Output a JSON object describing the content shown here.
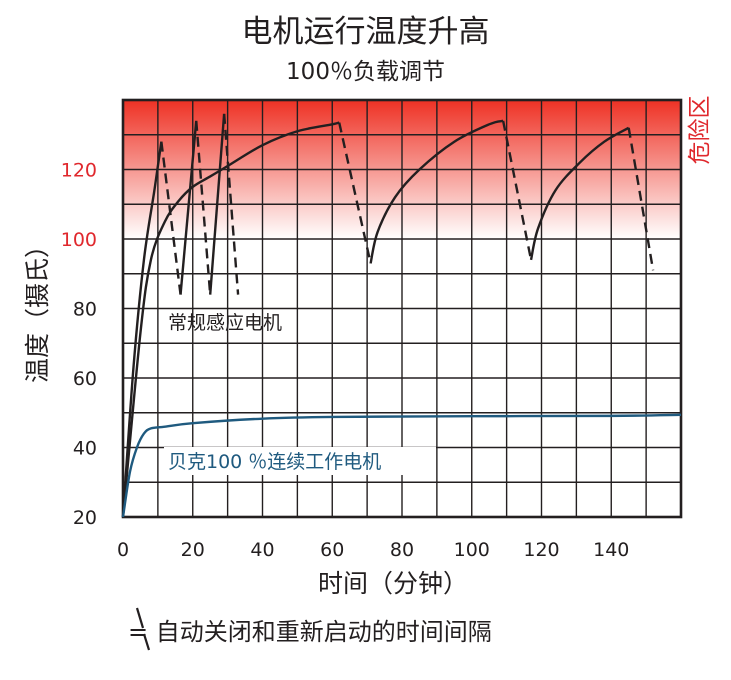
{
  "title": "电机运行温度升高",
  "subtitle": "100％负载调节",
  "danger_label": "危险区",
  "note": "= 自动关闭和重新启动的时间间隔",
  "colors": {
    "danger_top": "#ee3124",
    "danger_bottom": "#ffffff",
    "motor_line": "#231f20",
    "continuous_line": "#1f5a7f",
    "danger_text": "#e0282d",
    "axis_text": "#231f20"
  },
  "chart_data": {
    "type": "line",
    "title": "",
    "xlabel": "时间（分钟）",
    "ylabel": "温度（摄氏）",
    "xlim": [
      0,
      160
    ],
    "ylim": [
      20,
      140
    ],
    "x_ticks": [
      0,
      20,
      40,
      60,
      80,
      100,
      120,
      140
    ],
    "y_ticks": [
      20,
      40,
      60,
      80,
      100,
      120
    ],
    "danger_zone_from": 100,
    "grid": true,
    "series": [
      {
        "name": "常规感应电机",
        "color": "#231f20",
        "segments": [
          {
            "style": "solid",
            "points": [
              [
                0,
                20
              ],
              [
                3,
                63
              ],
              [
                6,
                94
              ],
              [
                9,
                114
              ],
              [
                11,
                128
              ]
            ]
          },
          {
            "style": "dashed",
            "points": [
              [
                11,
                128
              ],
              [
                16.5,
                84
              ]
            ]
          },
          {
            "style": "solid",
            "points": [
              [
                0,
                20
              ],
              [
                5,
                73
              ],
              [
                8,
                94
              ],
              [
                12,
                105
              ],
              [
                16,
                111
              ],
              [
                20,
                115
              ],
              [
                25,
                118
              ],
              [
                30,
                121
              ],
              [
                40,
                127
              ],
              [
                50,
                131
              ],
              [
                60,
                133
              ],
              [
                62,
                133.5
              ]
            ]
          },
          {
            "style": "solid",
            "points": [
              [
                16.5,
                84
              ],
              [
                21,
                134
              ]
            ]
          },
          {
            "style": "dashed",
            "points": [
              [
                21,
                134
              ],
              [
                25,
                84
              ]
            ]
          },
          {
            "style": "solid",
            "points": [
              [
                25,
                84
              ],
              [
                29,
                136
              ]
            ]
          },
          {
            "style": "dashed",
            "points": [
              [
                29,
                136
              ],
              [
                33,
                84
              ]
            ]
          },
          {
            "style": "dashed",
            "points": [
              [
                62,
                133.5
              ],
              [
                71,
                93
              ]
            ]
          },
          {
            "style": "solid",
            "points": [
              [
                71,
                93
              ],
              [
                73,
                102
              ],
              [
                78,
                112
              ],
              [
                85,
                120
              ],
              [
                95,
                128
              ],
              [
                105,
                133
              ],
              [
                109,
                134
              ]
            ]
          },
          {
            "style": "dashed",
            "points": [
              [
                109,
                134
              ],
              [
                117,
                94
              ]
            ]
          },
          {
            "style": "solid",
            "points": [
              [
                117,
                94
              ],
              [
                119,
                103
              ],
              [
                124,
                114
              ],
              [
                131,
                122
              ],
              [
                138,
                128
              ],
              [
                145,
                132
              ]
            ]
          },
          {
            "style": "dashed",
            "points": [
              [
                145,
                132
              ],
              [
                152,
                91
              ]
            ]
          }
        ]
      },
      {
        "name": "贝克100 ％连续工作电机",
        "color": "#1f5a7f",
        "segments": [
          {
            "style": "solid",
            "points": [
              [
                0,
                20
              ],
              [
                2,
                33
              ],
              [
                4,
                40
              ],
              [
                6,
                44
              ],
              [
                8,
                45.5
              ],
              [
                12,
                46
              ],
              [
                20,
                47
              ],
              [
                40,
                48.3
              ],
              [
                60,
                48.8
              ],
              [
                100,
                49
              ],
              [
                140,
                49.1
              ],
              [
                160,
                49.4
              ]
            ]
          }
        ]
      }
    ]
  }
}
